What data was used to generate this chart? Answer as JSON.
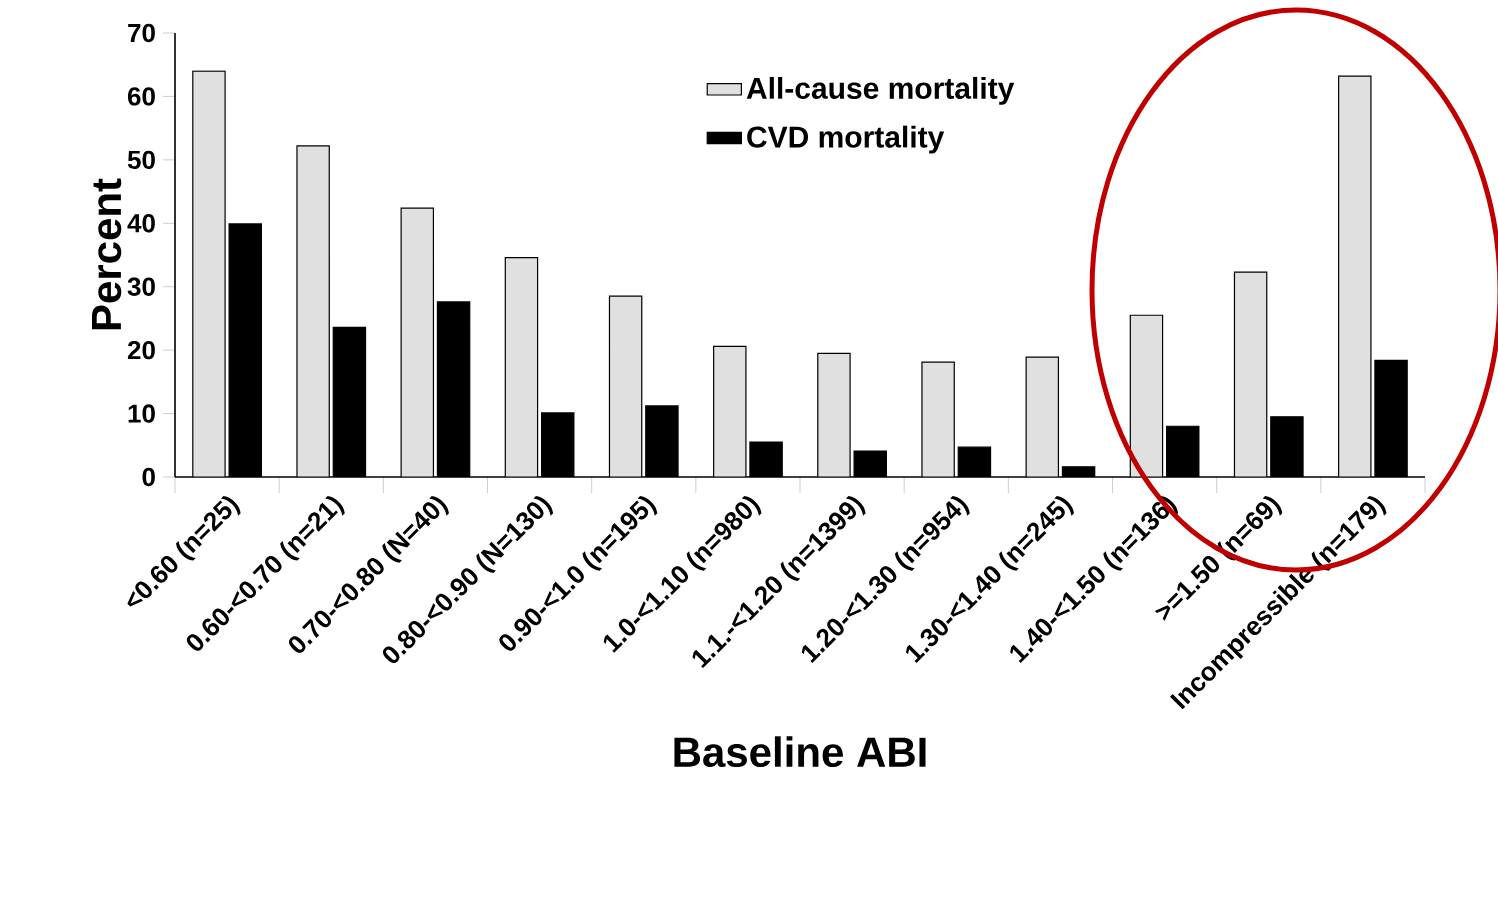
{
  "chart_data": {
    "type": "bar",
    "xlabel": "Baseline ABI",
    "ylabel": "Percent",
    "categories": [
      "<0.60 (n=25)",
      "0.60-<0.70 (n=21)",
      "0.70-<0.80 (N=40)",
      "0.80-<0.90 (N=130)",
      "0.90-<1.0 (n=195)",
      "1.0-<1.10 (n=980)",
      "1.1.-<1.20 (n=1399)",
      "1.20-<1.30 (n=954)",
      "1.30-<1.40 (n=245)",
      "1.40-<1.50 (n=136)",
      ">=1.50 (n=69)",
      "Incompressible (n=179)"
    ],
    "series": [
      {
        "name": "All-cause mortality",
        "color": "#e0e0e0",
        "values": [
          64.0,
          52.2,
          42.4,
          34.6,
          28.5,
          20.6,
          19.5,
          18.1,
          18.9,
          25.5,
          32.3,
          63.2
        ]
      },
      {
        "name": "CVD mortality",
        "color": "#000000",
        "values": [
          39.9,
          23.6,
          27.6,
          10.1,
          11.2,
          5.5,
          4.1,
          4.7,
          1.6,
          8.0,
          9.5,
          18.4
        ]
      }
    ],
    "ylim": [
      0,
      70
    ],
    "yticks": [
      0,
      10,
      20,
      30,
      40,
      50,
      60,
      70
    ],
    "grid": false,
    "legend": "top"
  }
}
